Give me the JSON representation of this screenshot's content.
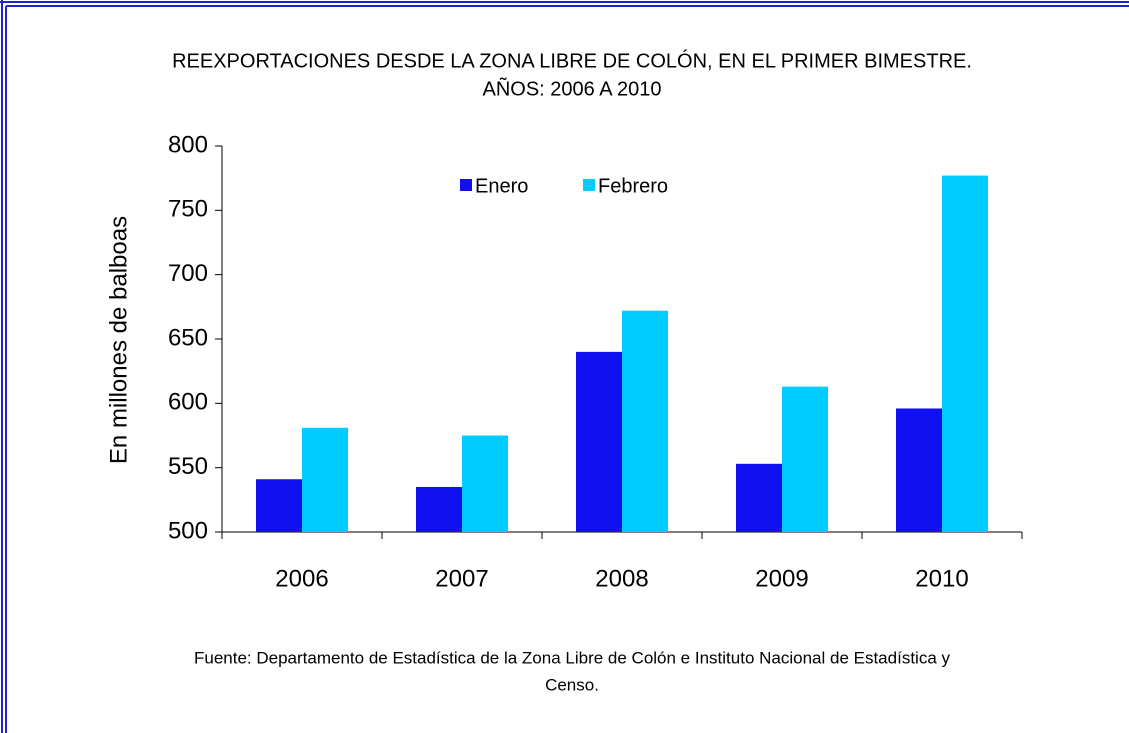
{
  "chart_data": {
    "type": "bar",
    "title": [
      "REEXPORTACIONES DESDE LA ZONA LIBRE DE COLÓN, EN EL PRIMER BIMESTRE.",
      "AÑOS: 2006 A 2010"
    ],
    "y_label": "En millones de balboas",
    "categories": [
      "2006",
      "2007",
      "2008",
      "2009",
      "2010"
    ],
    "series": [
      {
        "name": "Enero",
        "color": "#1010f0",
        "values": [
          541,
          535,
          640,
          553,
          596
        ]
      },
      {
        "name": "Febrero",
        "color": "#00ccff",
        "values": [
          581,
          575,
          672,
          613,
          777
        ]
      }
    ],
    "ylim": [
      500,
      800
    ],
    "yticks": [
      500,
      550,
      600,
      650,
      700,
      750,
      800
    ],
    "source": [
      "Fuente: Departamento de Estadística de la Zona Libre de Colón e Instituto Nacional de Estadística y",
      "Censo."
    ]
  }
}
